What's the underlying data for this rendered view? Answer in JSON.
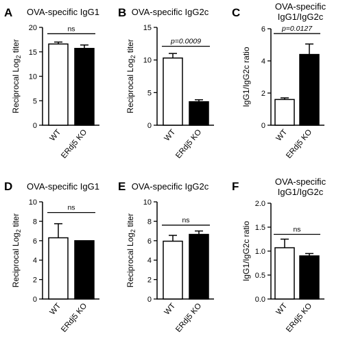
{
  "chart_data": [
    {
      "panel": "A",
      "type": "bar",
      "title": "OVA-specific IgG1",
      "xlabel": "",
      "ylabel": "Reciprocal Log₂ titer",
      "categories": [
        "WT",
        "ERdj5 KO"
      ],
      "values": [
        16.6,
        15.7
      ],
      "errors": [
        0.4,
        0.7
      ],
      "bar_fills": [
        "#ffffff",
        "#000000"
      ],
      "ylim": [
        0,
        20
      ],
      "yticks": [
        0,
        5,
        10,
        15,
        20
      ],
      "ytick_labels": [
        "0",
        "5",
        "10",
        "15",
        "20"
      ],
      "significance": "ns",
      "sig_line_y": 18.7
    },
    {
      "panel": "B",
      "type": "bar",
      "title": "OVA-specific IgG2c",
      "xlabel": "",
      "ylabel": "Reciprocal Log₂ titer",
      "categories": [
        "WT",
        "ERdj5 KO"
      ],
      "values": [
        10.3,
        3.6
      ],
      "errors": [
        0.7,
        0.3
      ],
      "bar_fills": [
        "#ffffff",
        "#000000"
      ],
      "ylim": [
        0,
        15
      ],
      "yticks": [
        0,
        5,
        10,
        15
      ],
      "ytick_labels": [
        "0",
        "5",
        "10",
        "15"
      ],
      "significance": "p=0.0009",
      "sig_line_y": 12.1
    },
    {
      "panel": "C",
      "type": "bar",
      "title": "OVA-specific IgG1/IgG2c",
      "xlabel": "",
      "ylabel": "IgG1/IgG2c ratio",
      "categories": [
        "WT",
        "ERdj5 KO"
      ],
      "values": [
        1.6,
        4.4
      ],
      "errors": [
        0.1,
        0.65
      ],
      "bar_fills": [
        "#ffffff",
        "#000000"
      ],
      "ylim": [
        0,
        6
      ],
      "yticks": [
        0,
        2,
        4,
        6
      ],
      "ytick_labels": [
        "0",
        "2",
        "4",
        "6"
      ],
      "significance": "p=0.0127",
      "sig_line_y": 5.7
    },
    {
      "panel": "D",
      "type": "bar",
      "title": "OVA-specific IgG1",
      "xlabel": "",
      "ylabel": "Reciprocal Log₂ titer",
      "categories": [
        "WT",
        "ERdj5 KO"
      ],
      "values": [
        6.3,
        6.0
      ],
      "errors": [
        1.45,
        0
      ],
      "bar_fills": [
        "#ffffff",
        "#000000"
      ],
      "ylim": [
        0,
        10
      ],
      "yticks": [
        0,
        2,
        4,
        6,
        8,
        10
      ],
      "ytick_labels": [
        "0",
        "2",
        "4",
        "6",
        "8",
        "10"
      ],
      "significance": "ns",
      "sig_line_y": 8.9
    },
    {
      "panel": "E",
      "type": "bar",
      "title": "OVA-specific IgG2c",
      "xlabel": "",
      "ylabel": "Reciprocal Log₂ titer",
      "categories": [
        "WT",
        "ERdj5 KO"
      ],
      "values": [
        5.95,
        6.65
      ],
      "errors": [
        0.6,
        0.35
      ],
      "bar_fills": [
        "#ffffff",
        "#000000"
      ],
      "ylim": [
        0,
        10
      ],
      "yticks": [
        0,
        2,
        4,
        6,
        8,
        10
      ],
      "ytick_labels": [
        "0",
        "2",
        "4",
        "6",
        "8",
        "10"
      ],
      "significance": "ns",
      "sig_line_y": 7.6
    },
    {
      "panel": "F",
      "type": "bar",
      "title": "OVA-specific IgG1/IgG2c",
      "xlabel": "",
      "ylabel": "IgG1/IgG2c ratio",
      "categories": [
        "WT",
        "ERdj5 KO"
      ],
      "values": [
        1.07,
        0.9
      ],
      "errors": [
        0.18,
        0.05
      ],
      "bar_fills": [
        "#ffffff",
        "#000000"
      ],
      "ylim": [
        0,
        2
      ],
      "yticks": [
        0,
        0.5,
        1,
        1.5,
        2
      ],
      "ytick_labels": [
        "0.0",
        "0.5",
        "1.0",
        "1.5",
        "2.0"
      ],
      "significance": "ns",
      "sig_line_y": 1.35
    }
  ]
}
